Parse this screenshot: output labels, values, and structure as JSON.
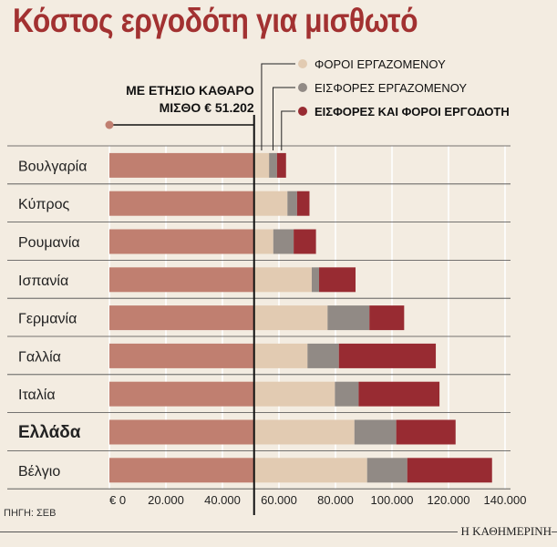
{
  "title": "Κόστος εργοδότη για μισθωτό",
  "source": "ΠΗΓΗ: ΣΕΒ",
  "publisher": "Η ΚΑΘΗΜΕΡΙΝΗ",
  "net_salary_label_line1": "ΜΕ ΕΤΗΣΙΟ ΚΑΘΑΡΟ",
  "net_salary_label_line2": "ΜΙΣΘΟ € 51.202",
  "colors": {
    "net": "#c07f70",
    "employee_taxes": "#e2cbb2",
    "employee_contributions": "#918a85",
    "employer": "#982b32",
    "title": "#a23131"
  },
  "chart_data": {
    "type": "bar",
    "orientation": "horizontal",
    "stacked": true,
    "title": "Κόστος εργοδότη για μισθωτό",
    "categories": [
      "Βουλγαρία",
      "Κύπρος",
      "Ρουμανία",
      "Ισπανία",
      "Γερμανία",
      "Γαλλία",
      "Ιταλία",
      "Ελλάδα",
      "Βέλγιο"
    ],
    "highlight_category": "Ελλάδα",
    "xlim": [
      0,
      145000
    ],
    "xticks": [
      0,
      20000,
      40000,
      60000,
      80000,
      100000,
      120000,
      140000
    ],
    "xtick_labels": [
      "€ 0",
      "20.000",
      "40.000",
      "60.000",
      "80.000",
      "100.000",
      "120.000",
      "140.000"
    ],
    "legend_position": "top-right",
    "series": [
      {
        "name": "",
        "values": [
          51202,
          51202,
          51202,
          51202,
          51202,
          51202,
          51202,
          51202,
          51202
        ]
      },
      {
        "name": "ΦΟΡΟΙ ΕΡΓΑΖΟΜΕΝΟΥ",
        "values": [
          5300,
          11800,
          6800,
          20400,
          26000,
          18900,
          28600,
          35500,
          40000
        ]
      },
      {
        "name": "ΕΙΣΦΟΡΕΣ ΕΡΓΑΖΟΜΕΝΟΥ",
        "values": [
          2800,
          3400,
          7200,
          2600,
          14800,
          11100,
          8400,
          14800,
          14200
        ]
      },
      {
        "name": "ΕΙΣΦΟΡΕΣ ΚΑΙ ΦΟΡΟΙ ΕΡΓΟΔΟΤΗ",
        "values": [
          3200,
          4400,
          7900,
          12900,
          12300,
          34300,
          28600,
          21000,
          30000
        ]
      }
    ]
  }
}
